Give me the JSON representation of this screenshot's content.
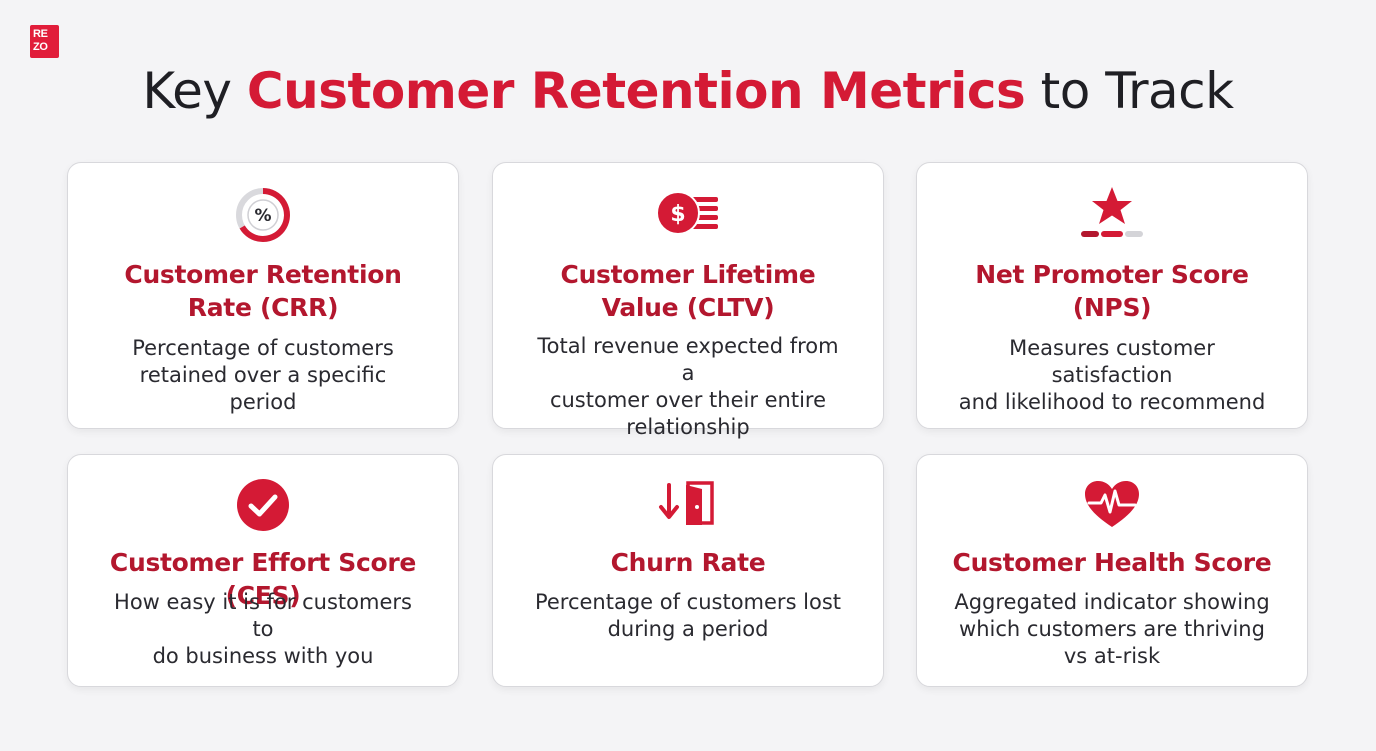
{
  "logo": {
    "line1": "RE",
    "line2": "ZO"
  },
  "header": {
    "title_prefix": "Key ",
    "title_highlight": "Customer Retention Metrics",
    "title_suffix": " to Track"
  },
  "colors": {
    "accent": "#d41a35",
    "card_title": "#b3172e",
    "background": "#f4f4f6"
  },
  "cards": [
    {
      "icon": "percent-gauge-icon",
      "title_line1": "Customer Retention",
      "title_line2": "Rate (CRR)",
      "desc_line1": "Percentage of customers",
      "desc_line2": "retained over a specific period",
      "desc_line3": ""
    },
    {
      "icon": "dollar-coin-icon",
      "title_line1": "Customer Lifetime",
      "title_line2": "Value (CLTV)",
      "desc_line1": "Total revenue expected from a",
      "desc_line2": "customer over their entire",
      "desc_line3": "relationship"
    },
    {
      "icon": "star-rating-icon",
      "title_line1": "Net Promoter Score",
      "title_line2": "(NPS)",
      "desc_line1": "Measures customer satisfaction",
      "desc_line2": "and likelihood to recommend",
      "desc_line3": ""
    },
    {
      "icon": "checkmark-circle-icon",
      "title_line1": "Customer Effort Score (CES)",
      "title_line2": "",
      "desc_line1": "How easy it is for customers to",
      "desc_line2": "do business with you",
      "desc_line3": ""
    },
    {
      "icon": "exit-door-icon",
      "title_line1": "Churn Rate",
      "title_line2": "",
      "desc_line1": "Percentage of customers lost",
      "desc_line2": "during a period",
      "desc_line3": ""
    },
    {
      "icon": "heartbeat-icon",
      "title_line1": "Customer Health Score",
      "title_line2": "",
      "desc_line1": "Aggregated indicator showing",
      "desc_line2": "which customers are thriving",
      "desc_line3": "vs at-risk"
    }
  ]
}
